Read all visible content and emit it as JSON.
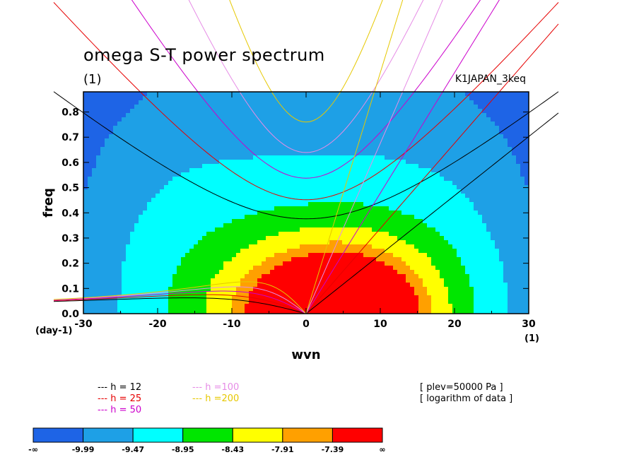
{
  "chart_data": {
    "type": "heatmap",
    "title": "omega S-T power spectrum",
    "subtitle": "(1)",
    "source_label": "K1JAPAN_3keq",
    "xlabel": "wvn",
    "ylabel": "freq",
    "x_unit": "(1)",
    "y_unit": "(day-1)",
    "xlim": [
      -30,
      30
    ],
    "ylim": [
      0,
      0.88
    ],
    "x_ticks": [
      "-30",
      "-20",
      "-10",
      "0",
      "10",
      "20",
      "30"
    ],
    "y_ticks": [
      "0.0",
      "0.1",
      "0.2",
      "0.3",
      "0.4",
      "0.5",
      "0.6",
      "0.7",
      "0.8"
    ],
    "levels": [
      "-∞",
      "-9.99",
      "-9.47",
      "-8.95",
      "-8.43",
      "-7.91",
      "-7.39",
      "∞"
    ],
    "level_colors": [
      "#1e64e6",
      "#1ea0e6",
      "#00ffff",
      "#00e600",
      "#ffff00",
      "#ffa000",
      "#ff0000"
    ],
    "dispersion_legend": [
      {
        "label": "h = 12",
        "color": "#000000"
      },
      {
        "label": "h = 25",
        "color": "#e60000"
      },
      {
        "label": "h = 50",
        "color": "#cc00cc"
      },
      {
        "label": "h =100",
        "color": "#e68ce6"
      },
      {
        "label": "h =200",
        "color": "#e6c800"
      }
    ],
    "notes": [
      "[ plev=50000 Pa ]",
      "[ logarithm of data ]"
    ]
  }
}
